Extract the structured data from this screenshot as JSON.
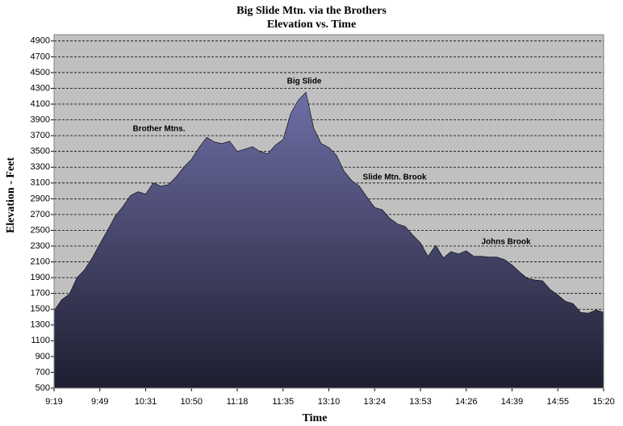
{
  "chart_data": {
    "type": "area",
    "title": "Big Slide Mtn. via the Brothers",
    "subtitle": "Elevation vs. Time",
    "x_label": "Time",
    "y_label": "Elevation - Feet",
    "categories": [
      "9:19",
      null,
      null,
      null,
      null,
      null,
      "9:49",
      null,
      null,
      null,
      null,
      null,
      "10:31",
      null,
      null,
      null,
      null,
      null,
      "10:50",
      null,
      null,
      null,
      null,
      null,
      "11:18",
      null,
      null,
      null,
      null,
      null,
      "11:35",
      null,
      null,
      null,
      null,
      null,
      "13:10",
      null,
      null,
      null,
      null,
      null,
      "13:24",
      null,
      null,
      null,
      null,
      null,
      "13:53",
      null,
      null,
      null,
      null,
      null,
      "14:26",
      null,
      null,
      null,
      null,
      null,
      "14:39",
      null,
      null,
      null,
      null,
      null,
      "14:55",
      null,
      null,
      null,
      null,
      null,
      "15:20"
    ],
    "values": [
      1480,
      1620,
      1690,
      1900,
      2000,
      2150,
      2330,
      2500,
      2680,
      2800,
      2940,
      2990,
      2960,
      3100,
      3060,
      3080,
      3180,
      3300,
      3400,
      3550,
      3680,
      3620,
      3600,
      3630,
      3500,
      3530,
      3560,
      3500,
      3470,
      3580,
      3650,
      3980,
      4150,
      4250,
      3800,
      3600,
      3550,
      3450,
      3250,
      3130,
      3060,
      2920,
      2790,
      2760,
      2650,
      2580,
      2550,
      2440,
      2340,
      2170,
      2310,
      2150,
      2230,
      2200,
      2240,
      2170,
      2170,
      2160,
      2160,
      2130,
      2060,
      1970,
      1890,
      1870,
      1860,
      1750,
      1680,
      1600,
      1570,
      1460,
      1450,
      1490,
      1460
    ],
    "fill_gradient": [
      "#6e6ea6",
      "#1e1e30"
    ],
    "ylim": [
      500,
      4980
    ],
    "yticks": [
      500,
      700,
      900,
      1100,
      1300,
      1500,
      1700,
      1900,
      2100,
      2300,
      2500,
      2700,
      2900,
      3100,
      3300,
      3500,
      3700,
      3900,
      4100,
      4300,
      4500,
      4700,
      4900
    ],
    "grid": true,
    "annotations": [
      "Big Slide",
      "Brother Mtns.",
      "Slide Mtn. Brook",
      "Johns Brook"
    ]
  }
}
